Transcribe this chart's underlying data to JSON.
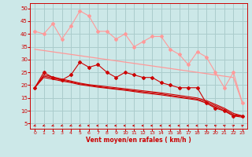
{
  "x": [
    0,
    1,
    2,
    3,
    4,
    5,
    6,
    7,
    8,
    9,
    10,
    11,
    12,
    13,
    14,
    15,
    16,
    17,
    18,
    19,
    20,
    21,
    22,
    23
  ],
  "line_pink_straight": [
    34,
    33.5,
    33,
    32.5,
    32,
    31.5,
    31,
    30.5,
    30,
    29.5,
    29,
    28.5,
    28,
    27.5,
    27,
    26.5,
    26,
    25.5,
    25,
    24.5,
    24,
    23.5,
    23,
    13
  ],
  "line_pink_jagged": [
    41,
    40,
    44,
    38,
    43,
    49,
    47,
    41,
    41,
    38,
    40,
    35,
    37,
    39,
    39,
    34,
    32,
    28,
    33,
    31,
    25,
    19,
    25,
    13
  ],
  "line_red_jagged": [
    19,
    25,
    23,
    22,
    24,
    29,
    27,
    28,
    25,
    23,
    25,
    24,
    23,
    23,
    21,
    20,
    19,
    19,
    19,
    13,
    11,
    10,
    8,
    8
  ],
  "line_red_straight1": [
    19,
    24.0,
    23.2,
    22.4,
    21.6,
    20.8,
    20.2,
    19.8,
    19.4,
    19.0,
    18.6,
    18.2,
    17.8,
    17.4,
    17.0,
    16.5,
    16.0,
    15.5,
    15.0,
    14.0,
    12.5,
    11.0,
    9.0,
    8.0
  ],
  "line_red_straight2": [
    19,
    23.5,
    22.8,
    22.0,
    21.3,
    20.5,
    20.0,
    19.5,
    19.0,
    18.6,
    18.2,
    17.8,
    17.4,
    17.0,
    16.6,
    16.0,
    15.5,
    15.0,
    14.5,
    13.5,
    12.0,
    10.5,
    8.5,
    8.0
  ],
  "line_red_straight3": [
    19,
    23.0,
    22.3,
    21.6,
    21.0,
    20.2,
    19.7,
    19.2,
    18.8,
    18.4,
    18.0,
    17.5,
    17.0,
    16.6,
    16.2,
    15.7,
    15.2,
    14.7,
    14.2,
    13.0,
    11.5,
    10.0,
    8.0,
    7.5
  ],
  "bg_color": "#cce8e8",
  "grid_color": "#aacccc",
  "light_red": "#ff9999",
  "dark_red": "#cc0000",
  "text_color": "#cc0000",
  "xlabel": "Vent moyen/en rafales ( km/h )",
  "ylim": [
    3,
    52
  ],
  "xlim": [
    -0.5,
    23.5
  ],
  "yticks": [
    5,
    10,
    15,
    20,
    25,
    30,
    35,
    40,
    45,
    50
  ],
  "xticks": [
    0,
    1,
    2,
    3,
    4,
    5,
    6,
    7,
    8,
    9,
    10,
    11,
    12,
    13,
    14,
    15,
    16,
    17,
    18,
    19,
    20,
    21,
    22,
    23
  ],
  "arrow_angles": [
    225,
    225,
    225,
    225,
    225,
    225,
    270,
    270,
    270,
    270,
    270,
    270,
    270,
    270,
    270,
    270,
    270,
    270,
    270,
    315,
    315,
    315,
    45,
    45
  ]
}
